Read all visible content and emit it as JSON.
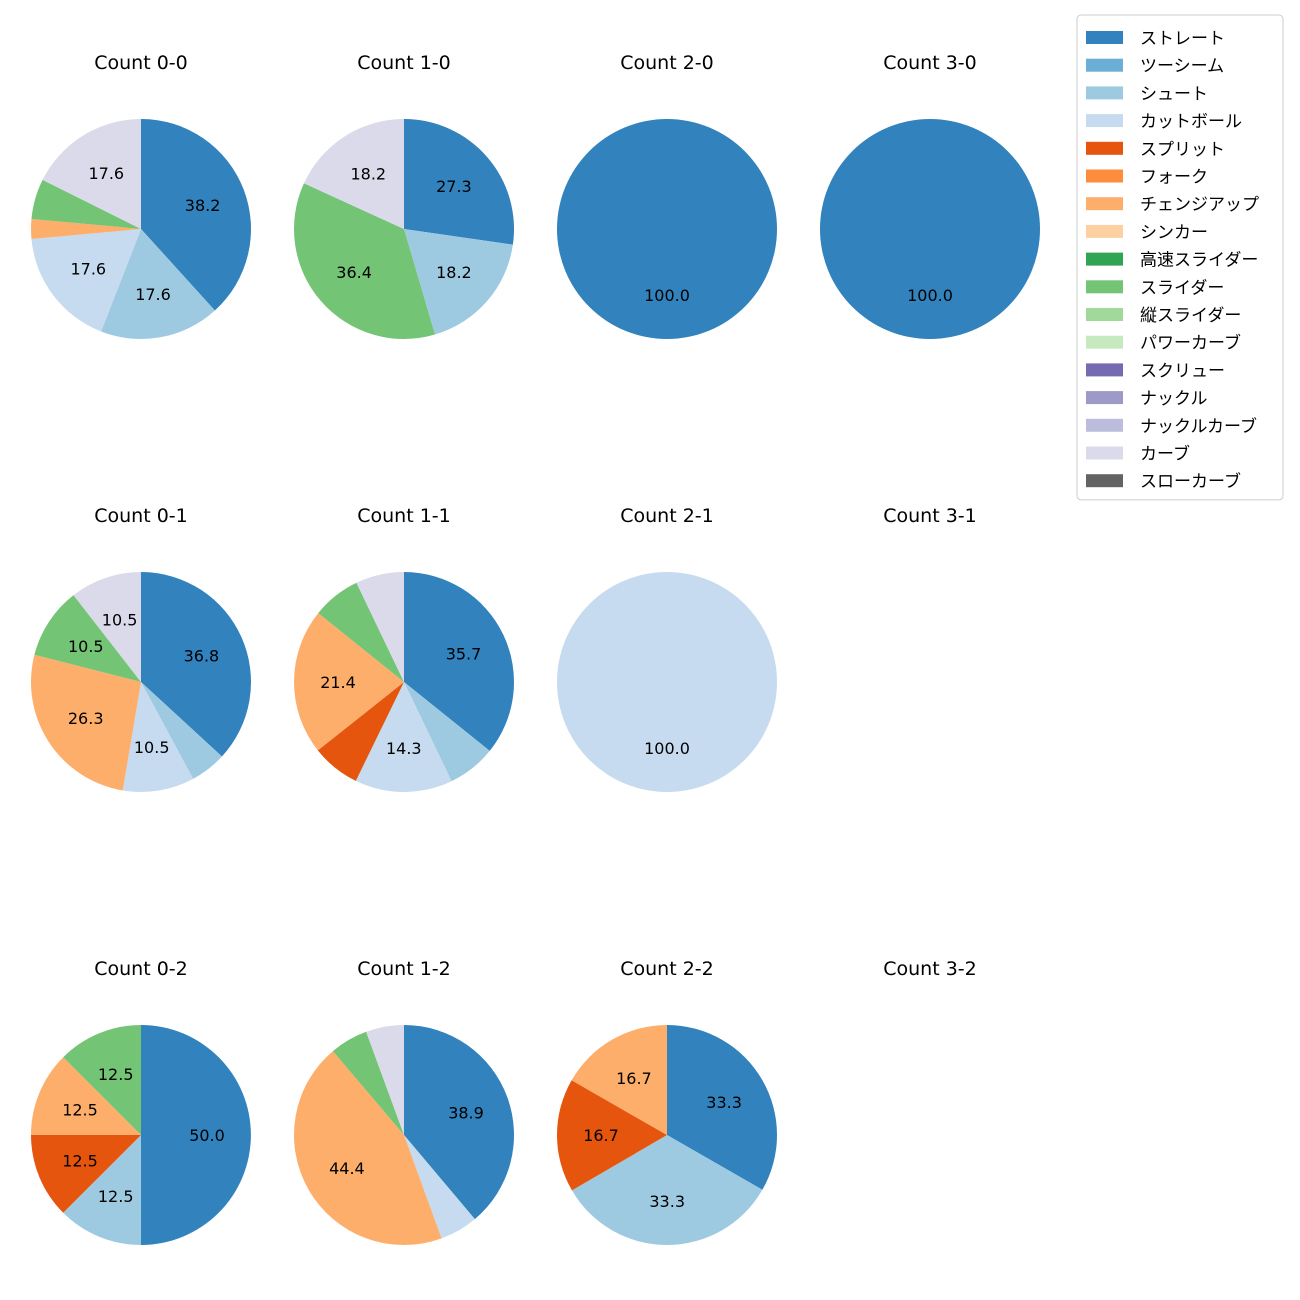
{
  "chart_data": {
    "type": "pie",
    "legend": {
      "position": "top-right",
      "entries": [
        {
          "name": "ストレート",
          "color": "#3182bd"
        },
        {
          "name": "ツーシーム",
          "color": "#6baed6"
        },
        {
          "name": "シュート",
          "color": "#9ecae1"
        },
        {
          "name": "カットボール",
          "color": "#c6dbef"
        },
        {
          "name": "スプリット",
          "color": "#e6550d"
        },
        {
          "name": "フォーク",
          "color": "#fd8d3c"
        },
        {
          "name": "チェンジアップ",
          "color": "#fdae6b"
        },
        {
          "name": "シンカー",
          "color": "#fdd0a2"
        },
        {
          "name": "高速スライダー",
          "color": "#31a354"
        },
        {
          "name": "スライダー",
          "color": "#74c476"
        },
        {
          "name": "縦スライダー",
          "color": "#a1d99b"
        },
        {
          "name": "パワーカーブ",
          "color": "#c7e9c0"
        },
        {
          "name": "スクリュー",
          "color": "#756bb1"
        },
        {
          "name": "ナックル",
          "color": "#9e9ac8"
        },
        {
          "name": "ナックルカーブ",
          "color": "#bcbddc"
        },
        {
          "name": "カーブ",
          "color": "#dadaeb"
        },
        {
          "name": "スローカーブ",
          "color": "#636363"
        }
      ]
    },
    "charts": [
      {
        "title": "Count 0-0",
        "slices": [
          {
            "pitch": "ストレート",
            "value": 38.2,
            "label": "38.2"
          },
          {
            "pitch": "シュート",
            "value": 17.6,
            "label": "17.6"
          },
          {
            "pitch": "カットボール",
            "value": 17.6,
            "label": "17.6"
          },
          {
            "pitch": "チェンジアップ",
            "value": 2.9,
            "label": ""
          },
          {
            "pitch": "スライダー",
            "value": 5.9,
            "label": ""
          },
          {
            "pitch": "カーブ",
            "value": 17.6,
            "label": "17.6"
          }
        ]
      },
      {
        "title": "Count 1-0",
        "slices": [
          {
            "pitch": "ストレート",
            "value": 27.3,
            "label": "27.3"
          },
          {
            "pitch": "シュート",
            "value": 18.2,
            "label": "18.2"
          },
          {
            "pitch": "スライダー",
            "value": 36.4,
            "label": "36.4"
          },
          {
            "pitch": "カーブ",
            "value": 18.2,
            "label": "18.2"
          }
        ]
      },
      {
        "title": "Count 2-0",
        "slices": [
          {
            "pitch": "ストレート",
            "value": 100.0,
            "label": "100.0"
          }
        ]
      },
      {
        "title": "Count 3-0",
        "slices": [
          {
            "pitch": "ストレート",
            "value": 100.0,
            "label": "100.0"
          }
        ]
      },
      {
        "title": "Count 0-1",
        "slices": [
          {
            "pitch": "ストレート",
            "value": 36.8,
            "label": "36.8"
          },
          {
            "pitch": "シュート",
            "value": 5.3,
            "label": ""
          },
          {
            "pitch": "カットボール",
            "value": 10.5,
            "label": "10.5"
          },
          {
            "pitch": "チェンジアップ",
            "value": 26.3,
            "label": "26.3"
          },
          {
            "pitch": "スライダー",
            "value": 10.5,
            "label": "10.5"
          },
          {
            "pitch": "カーブ",
            "value": 10.5,
            "label": "10.5"
          }
        ]
      },
      {
        "title": "Count 1-1",
        "slices": [
          {
            "pitch": "ストレート",
            "value": 35.7,
            "label": "35.7"
          },
          {
            "pitch": "シュート",
            "value": 7.1,
            "label": ""
          },
          {
            "pitch": "カットボール",
            "value": 14.3,
            "label": "14.3"
          },
          {
            "pitch": "スプリット",
            "value": 7.1,
            "label": ""
          },
          {
            "pitch": "チェンジアップ",
            "value": 21.4,
            "label": "21.4"
          },
          {
            "pitch": "スライダー",
            "value": 7.1,
            "label": ""
          },
          {
            "pitch": "カーブ",
            "value": 7.1,
            "label": ""
          }
        ]
      },
      {
        "title": "Count 2-1",
        "slices": [
          {
            "pitch": "カットボール",
            "value": 100.0,
            "label": "100.0"
          }
        ]
      },
      {
        "title": "Count 3-1",
        "slices": []
      },
      {
        "title": "Count 0-2",
        "slices": [
          {
            "pitch": "ストレート",
            "value": 50.0,
            "label": "50.0"
          },
          {
            "pitch": "シュート",
            "value": 12.5,
            "label": "12.5"
          },
          {
            "pitch": "スプリット",
            "value": 12.5,
            "label": "12.5"
          },
          {
            "pitch": "チェンジアップ",
            "value": 12.5,
            "label": "12.5"
          },
          {
            "pitch": "スライダー",
            "value": 12.5,
            "label": "12.5"
          }
        ]
      },
      {
        "title": "Count 1-2",
        "slices": [
          {
            "pitch": "ストレート",
            "value": 38.9,
            "label": "38.9"
          },
          {
            "pitch": "カットボール",
            "value": 5.6,
            "label": ""
          },
          {
            "pitch": "チェンジアップ",
            "value": 44.4,
            "label": "44.4"
          },
          {
            "pitch": "スライダー",
            "value": 5.6,
            "label": ""
          },
          {
            "pitch": "カーブ",
            "value": 5.6,
            "label": ""
          }
        ]
      },
      {
        "title": "Count 2-2",
        "slices": [
          {
            "pitch": "ストレート",
            "value": 33.3,
            "label": "33.3"
          },
          {
            "pitch": "シュート",
            "value": 33.3,
            "label": "33.3"
          },
          {
            "pitch": "スプリット",
            "value": 16.7,
            "label": "16.7"
          },
          {
            "pitch": "チェンジアップ",
            "value": 16.7,
            "label": "16.7"
          }
        ]
      },
      {
        "title": "Count 3-2",
        "slices": []
      }
    ]
  }
}
